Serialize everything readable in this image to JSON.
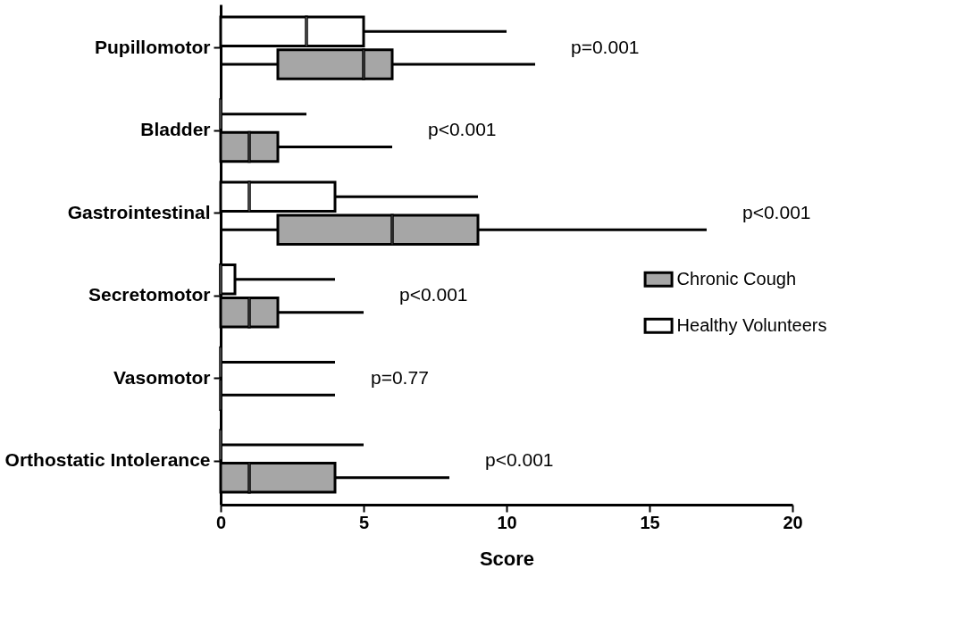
{
  "chart_data": {
    "type": "box",
    "orientation": "horizontal",
    "xlabel": "Score",
    "categories": [
      "Pupillomotor",
      "Bladder",
      "Gastrointestinal",
      "Secretomotor",
      "Vasomotor",
      "Orthostatic Intolerance"
    ],
    "series": [
      {
        "name": "Chronic Cough",
        "color": "#a6a6a6",
        "boxes": [
          {
            "low": 0,
            "q1": 2,
            "median": 5,
            "q3": 6,
            "high": 11
          },
          {
            "low": 0,
            "q1": 0,
            "median": 1,
            "q3": 2,
            "high": 6
          },
          {
            "low": 0,
            "q1": 2,
            "median": 6,
            "q3": 9,
            "high": 17
          },
          {
            "low": 0,
            "q1": 0,
            "median": 1,
            "q3": 2,
            "high": 5
          },
          {
            "low": 0,
            "q1": 0,
            "median": 0,
            "q3": 0,
            "high": 4
          },
          {
            "low": 0,
            "q1": 0,
            "median": 1,
            "q3": 4,
            "high": 8
          }
        ]
      },
      {
        "name": "Healthy Volunteers",
        "color": "#ffffff",
        "boxes": [
          {
            "low": 0,
            "q1": 0,
            "median": 3,
            "q3": 5,
            "high": 10
          },
          {
            "low": 0,
            "q1": 0,
            "median": 0,
            "q3": 0,
            "high": 3
          },
          {
            "low": 0,
            "q1": 0,
            "median": 1,
            "q3": 4,
            "high": 9
          },
          {
            "low": 0,
            "q1": 0,
            "median": 0,
            "q3": 0.5,
            "high": 4
          },
          {
            "low": 0,
            "q1": 0,
            "median": 0,
            "q3": 0,
            "high": 4
          },
          {
            "low": 0,
            "q1": 0,
            "median": 0,
            "q3": 0,
            "high": 5
          }
        ]
      }
    ],
    "xlim": [
      0,
      20
    ],
    "xticks": [
      0,
      5,
      10,
      15,
      20
    ],
    "grid": false,
    "legend": "right",
    "annotations": [
      "p=0.001",
      "p<0.001",
      "p<0.001",
      "p<0.001",
      "p=0.77",
      "p<0.001"
    ]
  }
}
